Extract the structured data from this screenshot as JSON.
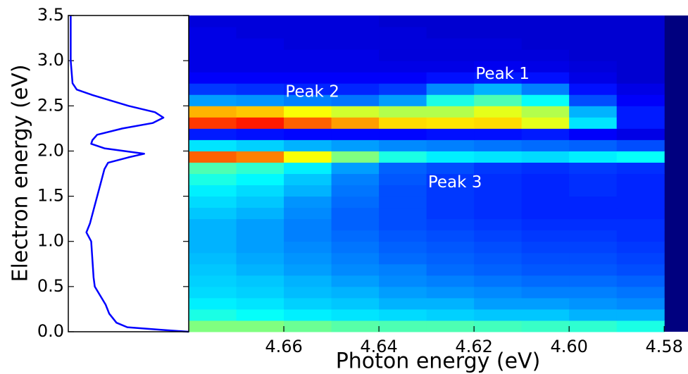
{
  "chart_data": [
    {
      "type": "line",
      "ylabel": "Electron energy (eV)",
      "color": "#0000ff",
      "xlim": [
        0,
        1
      ],
      "ylim": [
        0,
        3.5
      ],
      "yticks": [
        {
          "value": 0,
          "label": "0.0"
        },
        0.5,
        {
          "value": 1,
          "label": "1.0"
        },
        1.5,
        {
          "value": 2,
          "label": "2.0"
        },
        2.5,
        {
          "value": 3,
          "label": "3.0"
        },
        3.5
      ],
      "x": [
        0.02,
        0.02,
        0.035,
        0.07,
        0.2,
        0.5,
        0.72,
        0.79,
        0.7,
        0.45,
        0.24,
        0.2,
        0.19,
        0.3,
        0.63,
        0.5,
        0.33,
        0.3,
        0.26,
        0.22,
        0.18,
        0.15,
        0.19,
        0.2,
        0.21,
        0.22,
        0.31,
        0.34,
        0.4,
        0.49,
        0.78,
        1.0
      ],
      "y": [
        3.5,
        3.0,
        2.75,
        2.68,
        2.62,
        2.5,
        2.43,
        2.37,
        2.31,
        2.25,
        2.18,
        2.12,
        2.08,
        2.03,
        1.97,
        1.93,
        1.87,
        1.8,
        1.6,
        1.4,
        1.2,
        1.1,
        1.0,
        0.8,
        0.6,
        0.5,
        0.3,
        0.2,
        0.1,
        0.05,
        0.02,
        0.0
      ]
    },
    {
      "type": "heatmap",
      "xlabel": "Photon energy (eV)",
      "colormap": "jet",
      "xlim": [
        4.68,
        4.575
      ],
      "ylim": [
        0,
        3.5
      ],
      "xticks": [
        4.66,
        4.64,
        4.62,
        {
          "value": 4.6,
          "label": "4.60"
        },
        4.58
      ],
      "xbins": [
        4.68,
        4.67,
        4.66,
        4.65,
        4.64,
        4.63,
        4.62,
        4.61,
        4.6,
        4.59,
        4.58
      ],
      "ybins": [
        0,
        0.125,
        0.25,
        0.375,
        0.5,
        0.625,
        0.75,
        0.875,
        1,
        1.125,
        1.25,
        1.375,
        1.5,
        1.625,
        1.75,
        1.875,
        2,
        2.125,
        2.25,
        2.375,
        2.5,
        2.625,
        2.75,
        2.875,
        3,
        3.125,
        3.25,
        3.375,
        3.5
      ],
      "z": [
        [
          0.5,
          0.5,
          0.48,
          0.46,
          0.45,
          0.45,
          0.44,
          0.43,
          0.42,
          0.4
        ],
        [
          0.4,
          0.38,
          0.36,
          0.35,
          0.34,
          0.33,
          0.32,
          0.32,
          0.3,
          0.3
        ],
        [
          0.36,
          0.35,
          0.33,
          0.32,
          0.3,
          0.3,
          0.28,
          0.28,
          0.27,
          0.26
        ],
        [
          0.34,
          0.33,
          0.31,
          0.3,
          0.28,
          0.27,
          0.26,
          0.25,
          0.25,
          0.24
        ],
        [
          0.33,
          0.32,
          0.3,
          0.28,
          0.26,
          0.25,
          0.24,
          0.23,
          0.23,
          0.22
        ],
        [
          0.32,
          0.3,
          0.28,
          0.26,
          0.25,
          0.23,
          0.22,
          0.21,
          0.21,
          0.2
        ],
        [
          0.31,
          0.29,
          0.27,
          0.25,
          0.23,
          0.22,
          0.21,
          0.2,
          0.2,
          0.19
        ],
        [
          0.3,
          0.28,
          0.26,
          0.24,
          0.22,
          0.21,
          0.2,
          0.19,
          0.19,
          0.18
        ],
        [
          0.3,
          0.28,
          0.25,
          0.23,
          0.21,
          0.2,
          0.19,
          0.18,
          0.18,
          0.17
        ],
        [
          0.3,
          0.28,
          0.25,
          0.22,
          0.2,
          0.19,
          0.18,
          0.17,
          0.17,
          0.17
        ],
        [
          0.32,
          0.3,
          0.26,
          0.22,
          0.2,
          0.18,
          0.17,
          0.16,
          0.16,
          0.16
        ],
        [
          0.34,
          0.32,
          0.27,
          0.23,
          0.2,
          0.18,
          0.17,
          0.16,
          0.16,
          0.16
        ],
        [
          0.36,
          0.34,
          0.3,
          0.24,
          0.2,
          0.18,
          0.17,
          0.16,
          0.17,
          0.16
        ],
        [
          0.4,
          0.37,
          0.32,
          0.25,
          0.21,
          0.18,
          0.17,
          0.16,
          0.17,
          0.16
        ],
        [
          0.45,
          0.42,
          0.36,
          0.28,
          0.22,
          0.2,
          0.18,
          0.17,
          0.18,
          0.17
        ],
        [
          0.78,
          0.75,
          0.62,
          0.5,
          0.4,
          0.36,
          0.35,
          0.34,
          0.36,
          0.38
        ],
        [
          0.35,
          0.33,
          0.3,
          0.28,
          0.26,
          0.25,
          0.24,
          0.23,
          0.22,
          0.2
        ],
        [
          0.15,
          0.14,
          0.13,
          0.13,
          0.13,
          0.14,
          0.14,
          0.15,
          0.12,
          0.1
        ],
        [
          0.82,
          0.85,
          0.78,
          0.72,
          0.66,
          0.65,
          0.66,
          0.6,
          0.35,
          0.15
        ],
        [
          0.7,
          0.68,
          0.62,
          0.58,
          0.55,
          0.55,
          0.6,
          0.55,
          0.3,
          0.15
        ],
        [
          0.28,
          0.27,
          0.25,
          0.24,
          0.28,
          0.4,
          0.45,
          0.38,
          0.2,
          0.12
        ],
        [
          0.18,
          0.17,
          0.16,
          0.16,
          0.18,
          0.26,
          0.3,
          0.25,
          0.14,
          0.1
        ],
        [
          0.12,
          0.12,
          0.12,
          0.12,
          0.12,
          0.14,
          0.15,
          0.14,
          0.1,
          0.08
        ],
        [
          0.1,
          0.1,
          0.1,
          0.1,
          0.1,
          0.1,
          0.11,
          0.1,
          0.09,
          0.08
        ],
        [
          0.1,
          0.1,
          0.1,
          0.1,
          0.09,
          0.09,
          0.09,
          0.09,
          0.08,
          0.08
        ],
        [
          0.1,
          0.1,
          0.09,
          0.09,
          0.09,
          0.09,
          0.09,
          0.08,
          0.08,
          0.08
        ],
        [
          0.1,
          0.09,
          0.09,
          0.09,
          0.09,
          0.08,
          0.08,
          0.08,
          0.08,
          0.08
        ],
        [
          0.09,
          0.09,
          0.09,
          0.09,
          0.08,
          0.08,
          0.08,
          0.08,
          0.08,
          0.08
        ]
      ],
      "annotations": [
        {
          "text": "Peak 1",
          "x": 4.614,
          "y": 2.85
        },
        {
          "text": "Peak 2",
          "x": 4.654,
          "y": 2.65
        },
        {
          "text": "Peak 3",
          "x": 4.624,
          "y": 1.65
        }
      ]
    }
  ]
}
